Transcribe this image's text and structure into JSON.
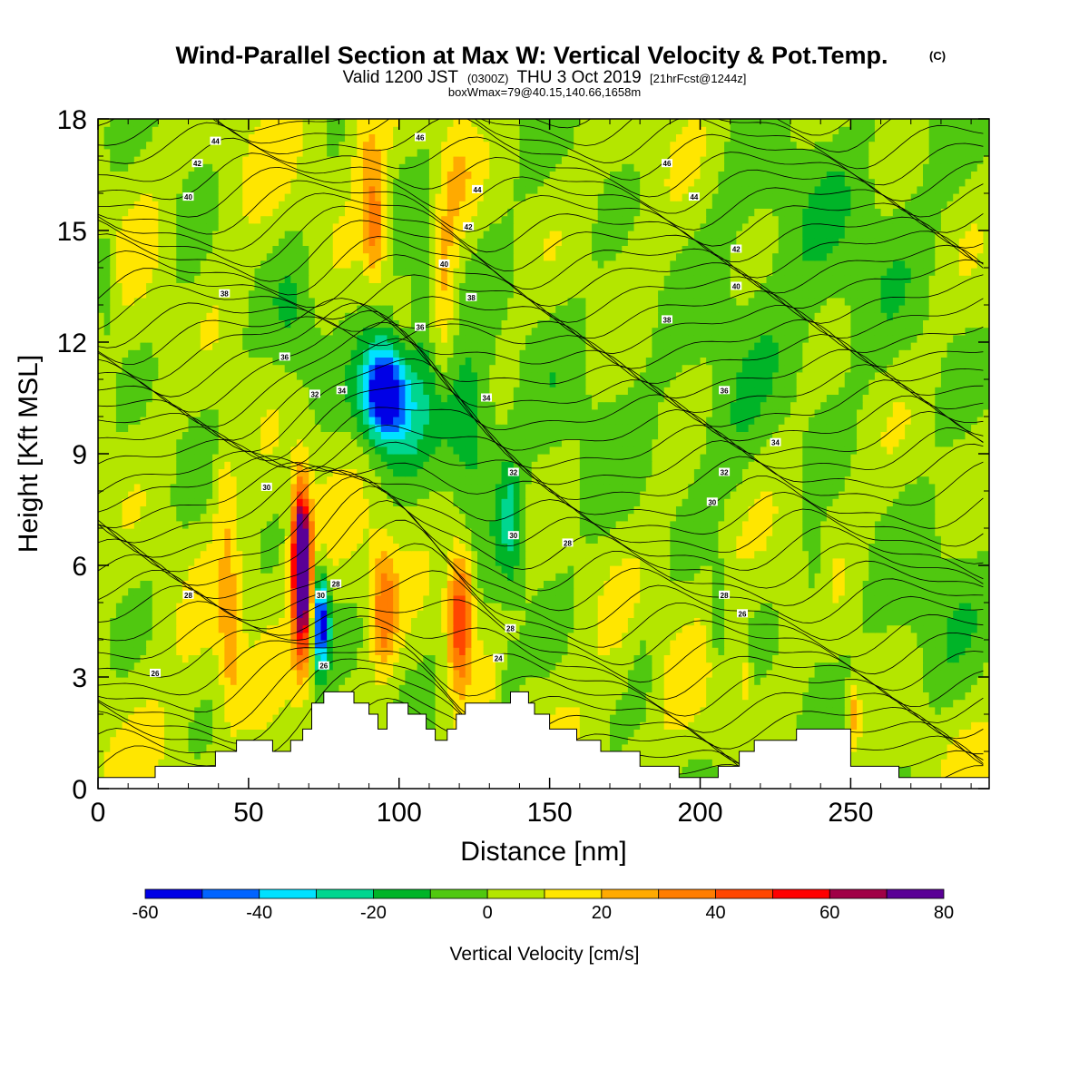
{
  "title": {
    "main": "Wind-Parallel Section at Max W: Vertical Velocity & Pot.Temp.",
    "copyright": "(C)",
    "valid_prefix": "Valid 1200 JST",
    "valid_z": "(0300Z)",
    "valid_date": "THU 3 Oct 2019",
    "valid_fcst": "[21hrFcst@1244z]",
    "box": "boxWmax=79@40.15,140.66,1658m"
  },
  "chart_data": {
    "type": "heatmap",
    "xlabel": "Distance [nm]",
    "ylabel": "Height [Kft MSL]",
    "xlim": [
      0,
      296
    ],
    "ylim": [
      0,
      18
    ],
    "xticks": [
      0,
      50,
      100,
      150,
      200,
      250
    ],
    "xtick_labels": [
      "0",
      "50",
      "100",
      "150",
      "200",
      "250"
    ],
    "yticks": [
      0,
      3,
      6,
      9,
      12,
      15,
      18
    ],
    "ytick_labels": [
      "0",
      "3",
      "6",
      "9",
      "12",
      "15",
      "18"
    ],
    "colorbar": {
      "label": "Vertical Velocity [cm/s]",
      "bounds": [
        -60,
        -50,
        -40,
        -30,
        -20,
        -10,
        0,
        10,
        20,
        30,
        40,
        50,
        60,
        70,
        80
      ],
      "tick_values": [
        -60,
        -40,
        -20,
        0,
        20,
        40,
        60,
        80
      ],
      "tick_labels": [
        "-60",
        "-40",
        "-20",
        "0",
        "20",
        "40",
        "60",
        "80"
      ],
      "colors": [
        "#0000e6",
        "#0064ff",
        "#00e1ff",
        "#00d68f",
        "#00b428",
        "#50c810",
        "#b4e600",
        "#ffe600",
        "#ffaa00",
        "#ff7d00",
        "#ff4600",
        "#ff0000",
        "#a00046",
        "#5a0096"
      ]
    },
    "background_value": 5,
    "features": [
      {
        "x": 68,
        "y": 5.5,
        "sx": 2.2,
        "sy": 1.5,
        "w": 70
      },
      {
        "x": 67,
        "y": 6.6,
        "sx": 2.0,
        "sy": 1.2,
        "w": 45
      },
      {
        "x": 74,
        "y": 4.5,
        "sx": 2.0,
        "sy": 0.9,
        "w": -65
      },
      {
        "x": 95,
        "y": 4.8,
        "sx": 3.0,
        "sy": 1.2,
        "w": 32
      },
      {
        "x": 120,
        "y": 4.2,
        "sx": 2.8,
        "sy": 1.1,
        "w": 38
      },
      {
        "x": 121,
        "y": 5.5,
        "sx": 3.0,
        "sy": 1.0,
        "w": 22
      },
      {
        "x": 95,
        "y": 10.8,
        "sx": 5.0,
        "sy": 0.9,
        "w": -55
      },
      {
        "x": 100,
        "y": 10.2,
        "sx": 9.0,
        "sy": 1.2,
        "w": -30
      },
      {
        "x": 123,
        "y": 9.8,
        "sx": 6.0,
        "sy": 1.4,
        "w": -28
      },
      {
        "x": 137,
        "y": 7.2,
        "sx": 3.0,
        "sy": 1.2,
        "w": -25
      },
      {
        "x": 92,
        "y": 15.0,
        "sx": 2.5,
        "sy": 0.9,
        "w": 30
      },
      {
        "x": 90,
        "y": 17.0,
        "sx": 4.0,
        "sy": 1.2,
        "w": 18
      },
      {
        "x": 115,
        "y": 14.0,
        "sx": 3.0,
        "sy": 2.0,
        "w": 18
      },
      {
        "x": 120,
        "y": 16.5,
        "sx": 4.0,
        "sy": 1.2,
        "w": 15
      },
      {
        "x": 44,
        "y": 4.0,
        "sx": 2.5,
        "sy": 1.5,
        "w": 22
      },
      {
        "x": 42,
        "y": 8.0,
        "sx": 2.5,
        "sy": 1.3,
        "w": 15
      },
      {
        "x": 30,
        "y": 14.5,
        "sx": 6.0,
        "sy": 2.0,
        "w": -8
      },
      {
        "x": 3,
        "y": 13.5,
        "sx": 2.5,
        "sy": 1.2,
        "w": -15
      },
      {
        "x": 65,
        "y": 12.5,
        "sx": 5.0,
        "sy": 1.5,
        "w": -10
      },
      {
        "x": 150,
        "y": 12.0,
        "sx": 20.0,
        "sy": 3.0,
        "w": -8
      },
      {
        "x": 250,
        "y": 13.0,
        "sx": 35.0,
        "sy": 3.5,
        "w": -9
      },
      {
        "x": 210,
        "y": 9.0,
        "sx": 10.0,
        "sy": 1.5,
        "w": -8
      },
      {
        "x": 280,
        "y": 4.5,
        "sx": 12.0,
        "sy": 2.0,
        "w": -8
      },
      {
        "x": 216,
        "y": 16.5,
        "sx": 15.0,
        "sy": 1.5,
        "w": -6
      },
      {
        "x": 206,
        "y": 4.8,
        "sx": 2.0,
        "sy": 1.0,
        "w": -18
      },
      {
        "x": 238,
        "y": 5.5,
        "sx": 3.0,
        "sy": 1.3,
        "w": -12
      },
      {
        "x": 181,
        "y": 3.2,
        "sx": 3.0,
        "sy": 1.0,
        "w": -9
      },
      {
        "x": 108,
        "y": 12.5,
        "sx": 3.0,
        "sy": 1.5,
        "w": -15
      },
      {
        "x": 137,
        "y": 2.8,
        "sx": 2.0,
        "sy": 0.7,
        "w": -15
      },
      {
        "x": 251,
        "y": 2.0,
        "sx": 1.5,
        "sy": 0.6,
        "w": 25
      },
      {
        "x": 215,
        "y": 3.0,
        "sx": 1.2,
        "sy": 0.6,
        "w": 15
      }
    ],
    "terrain": [
      [
        0,
        0.3
      ],
      [
        19,
        0.3
      ],
      [
        19,
        0.6
      ],
      [
        39,
        0.6
      ],
      [
        39,
        1.0
      ],
      [
        46,
        1.0
      ],
      [
        46,
        1.3
      ],
      [
        58,
        1.3
      ],
      [
        58,
        1.0
      ],
      [
        64,
        1.0
      ],
      [
        64,
        1.3
      ],
      [
        68,
        1.3
      ],
      [
        68,
        1.6
      ],
      [
        71,
        1.6
      ],
      [
        71,
        2.3
      ],
      [
        75,
        2.3
      ],
      [
        75,
        2.6
      ],
      [
        85,
        2.6
      ],
      [
        85,
        2.3
      ],
      [
        90,
        2.3
      ],
      [
        90,
        2.0
      ],
      [
        93,
        2.0
      ],
      [
        93,
        1.6
      ],
      [
        96,
        1.6
      ],
      [
        96,
        2.3
      ],
      [
        103,
        2.3
      ],
      [
        103,
        2.0
      ],
      [
        109,
        2.0
      ],
      [
        109,
        1.6
      ],
      [
        112,
        1.6
      ],
      [
        112,
        1.3
      ],
      [
        116,
        1.3
      ],
      [
        116,
        1.6
      ],
      [
        119,
        1.6
      ],
      [
        119,
        2.0
      ],
      [
        122,
        2.0
      ],
      [
        122,
        2.3
      ],
      [
        137,
        2.3
      ],
      [
        137,
        2.6
      ],
      [
        143,
        2.6
      ],
      [
        143,
        2.3
      ],
      [
        145,
        2.3
      ],
      [
        145,
        2.0
      ],
      [
        150,
        2.0
      ],
      [
        150,
        1.6
      ],
      [
        159,
        1.6
      ],
      [
        159,
        1.3
      ],
      [
        167,
        1.3
      ],
      [
        167,
        1.0
      ],
      [
        180,
        1.0
      ],
      [
        180,
        0.6
      ],
      [
        193,
        0.6
      ],
      [
        193,
        0.3
      ],
      [
        206,
        0.3
      ],
      [
        206,
        0.6
      ],
      [
        213,
        0.6
      ],
      [
        213,
        1.0
      ],
      [
        218,
        1.0
      ],
      [
        218,
        1.3
      ],
      [
        232,
        1.3
      ],
      [
        232,
        1.6
      ],
      [
        250,
        1.6
      ],
      [
        250,
        0.6
      ],
      [
        266,
        0.6
      ],
      [
        266,
        0.3
      ],
      [
        296,
        0.3
      ]
    ],
    "contour_labels": [
      {
        "x": 39,
        "y": 17.4,
        "text": "44"
      },
      {
        "x": 33,
        "y": 16.8,
        "text": "42"
      },
      {
        "x": 30,
        "y": 15.9,
        "text": "40"
      },
      {
        "x": 42,
        "y": 13.3,
        "text": "38"
      },
      {
        "x": 62,
        "y": 11.6,
        "text": "36"
      },
      {
        "x": 72,
        "y": 10.6,
        "text": "32"
      },
      {
        "x": 81,
        "y": 10.7,
        "text": "34"
      },
      {
        "x": 56,
        "y": 8.1,
        "text": "30"
      },
      {
        "x": 30,
        "y": 5.2,
        "text": "28"
      },
      {
        "x": 19,
        "y": 3.1,
        "text": "26"
      },
      {
        "x": 74,
        "y": 5.2,
        "text": "30"
      },
      {
        "x": 79,
        "y": 5.5,
        "text": "28"
      },
      {
        "x": 75,
        "y": 3.3,
        "text": "26"
      },
      {
        "x": 107,
        "y": 17.5,
        "text": "46"
      },
      {
        "x": 126,
        "y": 16.1,
        "text": "44"
      },
      {
        "x": 123,
        "y": 15.1,
        "text": "42"
      },
      {
        "x": 115,
        "y": 14.1,
        "text": "40"
      },
      {
        "x": 124,
        "y": 13.2,
        "text": "38"
      },
      {
        "x": 107,
        "y": 12.4,
        "text": "36"
      },
      {
        "x": 129,
        "y": 10.5,
        "text": "34"
      },
      {
        "x": 138,
        "y": 8.5,
        "text": "32"
      },
      {
        "x": 138,
        "y": 6.8,
        "text": "30"
      },
      {
        "x": 137,
        "y": 4.3,
        "text": "28"
      },
      {
        "x": 133,
        "y": 3.5,
        "text": "24"
      },
      {
        "x": 156,
        "y": 6.6,
        "text": "28"
      },
      {
        "x": 189,
        "y": 16.8,
        "text": "46"
      },
      {
        "x": 198,
        "y": 15.9,
        "text": "44"
      },
      {
        "x": 212,
        "y": 14.5,
        "text": "42"
      },
      {
        "x": 212,
        "y": 13.5,
        "text": "40"
      },
      {
        "x": 189,
        "y": 12.6,
        "text": "38"
      },
      {
        "x": 208,
        "y": 10.7,
        "text": "36"
      },
      {
        "x": 225,
        "y": 9.3,
        "text": "34"
      },
      {
        "x": 208,
        "y": 8.5,
        "text": "32"
      },
      {
        "x": 204,
        "y": 7.7,
        "text": "30"
      },
      {
        "x": 208,
        "y": 5.2,
        "text": "28"
      },
      {
        "x": 214,
        "y": 4.7,
        "text": "26"
      }
    ]
  }
}
